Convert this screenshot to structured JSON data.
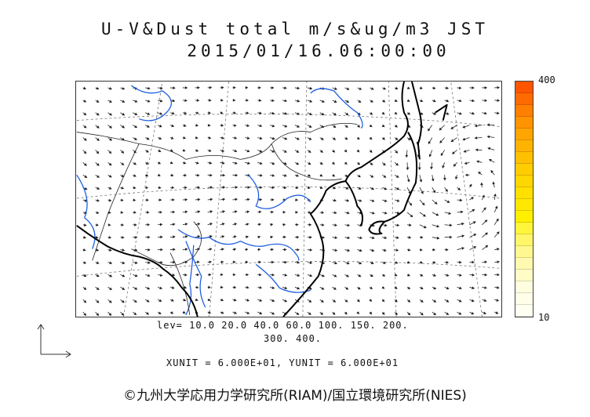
{
  "title": {
    "line1": "U-V&Dust total m/s&ug/m3 JST",
    "line2": "2015/01/16.06:00:00"
  },
  "colorbar": {
    "max_label": "400",
    "min_label": "10",
    "colors": [
      "#ff5500",
      "#ff6a00",
      "#ff7f00",
      "#ff9400",
      "#ffa500",
      "#ffb300",
      "#ffc000",
      "#ffcd00",
      "#ffd700",
      "#ffe000",
      "#ffe800",
      "#fff000",
      "#fff53a",
      "#fff66a",
      "#fff890",
      "#fffab0",
      "#fffcc8",
      "#fffde0",
      "#fffee8",
      "#fffff2"
    ]
  },
  "legend": {
    "levels_line1": "lev= 10.0 20.0 40.0 60.0 100. 150. 200.",
    "levels_line2": "300. 400.",
    "units": "XUNIT = 6.000E+01, YUNIT = 6.000E+01"
  },
  "footer": {
    "credit": "©九州大学応用力学研究所(RIAM)/国立環境研究所(NIES)"
  },
  "map": {
    "coastline_color": "#000000",
    "river_color": "#1f5fe0",
    "border_color": "#222222",
    "vector_color": "#222222",
    "grid_color": "#777777"
  }
}
